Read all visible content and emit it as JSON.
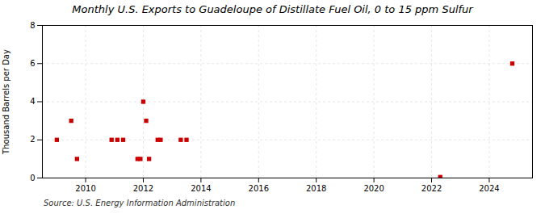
{
  "chart_data": {
    "type": "scatter",
    "title": "Monthly U.S. Exports to Guadeloupe of Distillate Fuel Oil, 0 to 15 ppm Sulfur",
    "ylabel": "Thousand Barrels per Day",
    "source": "Source: U.S. Energy Information Administration",
    "x": [
      2009.0,
      2009.5,
      2009.7,
      2010.9,
      2011.1,
      2011.3,
      2011.8,
      2011.9,
      2012.0,
      2012.1,
      2012.2,
      2012.5,
      2012.6,
      2013.3,
      2013.5,
      2022.3,
      2024.8
    ],
    "values": [
      2.0,
      3.0,
      1.0,
      2.0,
      2.0,
      2.0,
      1.0,
      1.0,
      4.0,
      3.0,
      1.0,
      2.0,
      2.0,
      2.0,
      2.0,
      0.05,
      6.0
    ],
    "color": "#cc0000",
    "marker": "square",
    "xlim": [
      2008.5,
      2025.5
    ],
    "ylim": [
      0,
      8
    ],
    "xticks": [
      2010,
      2012,
      2014,
      2016,
      2018,
      2020,
      2022,
      2024
    ],
    "yticks": [
      0,
      2,
      4,
      6,
      8
    ],
    "grid": true
  }
}
